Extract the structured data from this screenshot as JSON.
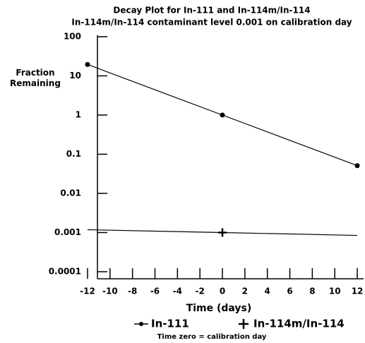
{
  "chart_data": {
    "type": "line",
    "title": "Decay Plot for In-111 and In-114m/In-114",
    "subtitle": "In-114m/In-114 contaminant level 0.001 on calibration day",
    "x_label": "Time (days)",
    "y_label": "Fraction Remaining",
    "annotation": "Time zero = calibration day",
    "x": [
      -12,
      0,
      12
    ],
    "series": [
      {
        "name": "In-111",
        "color": "#000000",
        "marker": "dot",
        "values": [
          19.5,
          1,
          0.051
        ]
      },
      {
        "name": "In-114m/In-114",
        "color": "#000000",
        "marker": "plus",
        "values": [
          0.00118,
          0.001,
          0.000845
        ]
      }
    ],
    "xlim": [
      -12,
      12.5
    ],
    "xticks": [
      -12,
      -10,
      -8,
      -6,
      -4,
      -2,
      0,
      2,
      4,
      6,
      8,
      10,
      12
    ],
    "ylim": [
      0.0001,
      100
    ],
    "yticks": [
      100,
      10,
      1,
      0.1,
      0.01,
      0.001,
      0.0001
    ],
    "y_scale": "log"
  }
}
